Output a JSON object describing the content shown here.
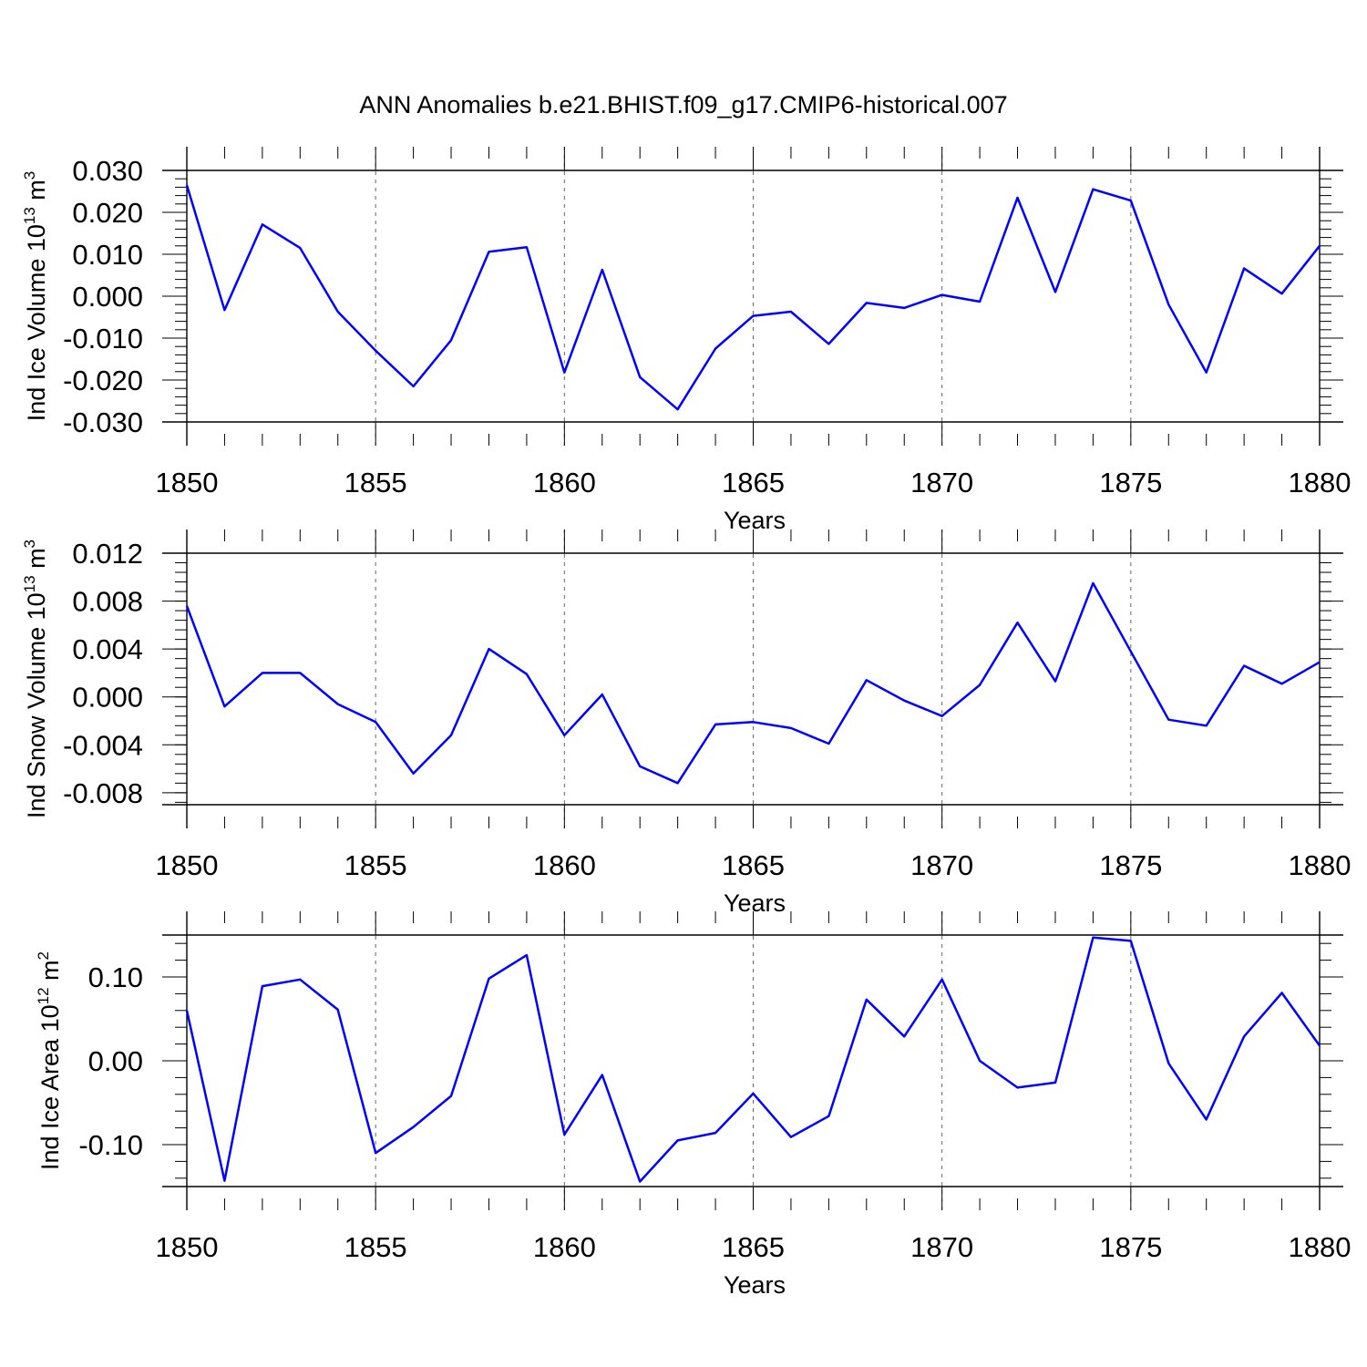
{
  "title": "ANN Anomalies b.e21.BHIST.f09_g17.CMIP6-historical.007",
  "line_color": "#0000ff",
  "chart_data": [
    {
      "type": "line",
      "name": "ice-volume",
      "ylabel_main": "Ind Ice Volume 10",
      "ylabel_exp": "13",
      "ylabel_unit": " m",
      "ylabel_unit_exp": "3",
      "xlabel": "Years",
      "xlim": [
        1850,
        1880
      ],
      "ylim": [
        -0.03,
        0.03
      ],
      "xticks": [
        "1850",
        "1855",
        "1860",
        "1865",
        "1870",
        "1875",
        "1880"
      ],
      "yticks": [
        "0.030",
        "0.020",
        "0.010",
        "0.000",
        "-0.010",
        "-0.020",
        "-0.030"
      ],
      "ytick_values": [
        0.03,
        0.02,
        0.01,
        0.0,
        -0.01,
        -0.02,
        -0.03
      ],
      "x": [
        1850,
        1851,
        1852,
        1853,
        1854,
        1855,
        1856,
        1857,
        1858,
        1859,
        1860,
        1861,
        1862,
        1863,
        1864,
        1865,
        1866,
        1867,
        1868,
        1869,
        1870,
        1871,
        1872,
        1873,
        1874,
        1875,
        1876,
        1877,
        1878,
        1879,
        1880
      ],
      "y": [
        0.0265,
        -0.0033,
        0.0171,
        0.0115,
        -0.0037,
        -0.013,
        -0.0215,
        -0.0105,
        0.0106,
        0.0117,
        -0.0182,
        0.0063,
        -0.0193,
        -0.027,
        -0.0125,
        -0.0047,
        -0.0037,
        -0.0114,
        -0.0016,
        -0.0028,
        0.0003,
        -0.0013,
        0.0235,
        0.001,
        0.0255,
        0.0228,
        -0.002,
        -0.0182,
        0.0066,
        0.0006,
        0.012
      ]
    },
    {
      "type": "line",
      "name": "snow-volume",
      "ylabel_main": "Ind Snow Volume 10",
      "ylabel_exp": "13",
      "ylabel_unit": " m",
      "ylabel_unit_exp": "3",
      "xlabel": "Years",
      "xlim": [
        1850,
        1880
      ],
      "ylim": [
        -0.009,
        0.012
      ],
      "xticks": [
        "1850",
        "1855",
        "1860",
        "1865",
        "1870",
        "1875",
        "1880"
      ],
      "yticks": [
        "0.012",
        "0.008",
        "0.004",
        "0.000",
        "-0.004",
        "-0.008"
      ],
      "ytick_values": [
        0.012,
        0.008,
        0.004,
        0.0,
        -0.004,
        -0.008
      ],
      "x": [
        1850,
        1851,
        1852,
        1853,
        1854,
        1855,
        1856,
        1857,
        1858,
        1859,
        1860,
        1861,
        1862,
        1863,
        1864,
        1865,
        1866,
        1867,
        1868,
        1869,
        1870,
        1871,
        1872,
        1873,
        1874,
        1875,
        1876,
        1877,
        1878,
        1879,
        1880
      ],
      "y": [
        0.0076,
        -0.0008,
        0.002,
        0.002,
        -0.0006,
        -0.0021,
        -0.0064,
        -0.0032,
        0.004,
        0.0019,
        -0.0032,
        0.0002,
        -0.0058,
        -0.0072,
        -0.0023,
        -0.0021,
        -0.0026,
        -0.0039,
        0.0014,
        -0.0003,
        -0.0016,
        0.001,
        0.0062,
        0.0013,
        0.0095,
        0.0038,
        -0.0019,
        -0.0024,
        0.0026,
        0.0011,
        0.0029
      ]
    },
    {
      "type": "line",
      "name": "ice-area",
      "ylabel_main": "Ind Ice Area 10",
      "ylabel_exp": "12",
      "ylabel_unit": " m",
      "ylabel_unit_exp": "2",
      "xlabel": "Years",
      "xlim": [
        1850,
        1880
      ],
      "ylim": [
        -0.15,
        0.15
      ],
      "xticks": [
        "1850",
        "1855",
        "1860",
        "1865",
        "1870",
        "1875",
        "1880"
      ],
      "yticks": [
        "0.10",
        "0.00",
        "-0.10"
      ],
      "ytick_values": [
        0.1,
        0.0,
        -0.1
      ],
      "x": [
        1850,
        1851,
        1852,
        1853,
        1854,
        1855,
        1856,
        1857,
        1858,
        1859,
        1860,
        1861,
        1862,
        1863,
        1864,
        1865,
        1866,
        1867,
        1868,
        1869,
        1870,
        1871,
        1872,
        1873,
        1874,
        1875,
        1876,
        1877,
        1878,
        1879,
        1880
      ],
      "y": [
        0.06,
        -0.143,
        0.089,
        0.097,
        0.061,
        -0.11,
        -0.079,
        -0.042,
        0.098,
        0.126,
        -0.088,
        -0.017,
        -0.144,
        -0.095,
        -0.086,
        -0.039,
        -0.091,
        -0.066,
        0.073,
        0.029,
        0.097,
        0.0,
        -0.032,
        -0.026,
        0.147,
        0.143,
        -0.003,
        -0.07,
        0.029,
        0.081,
        0.018
      ]
    }
  ]
}
